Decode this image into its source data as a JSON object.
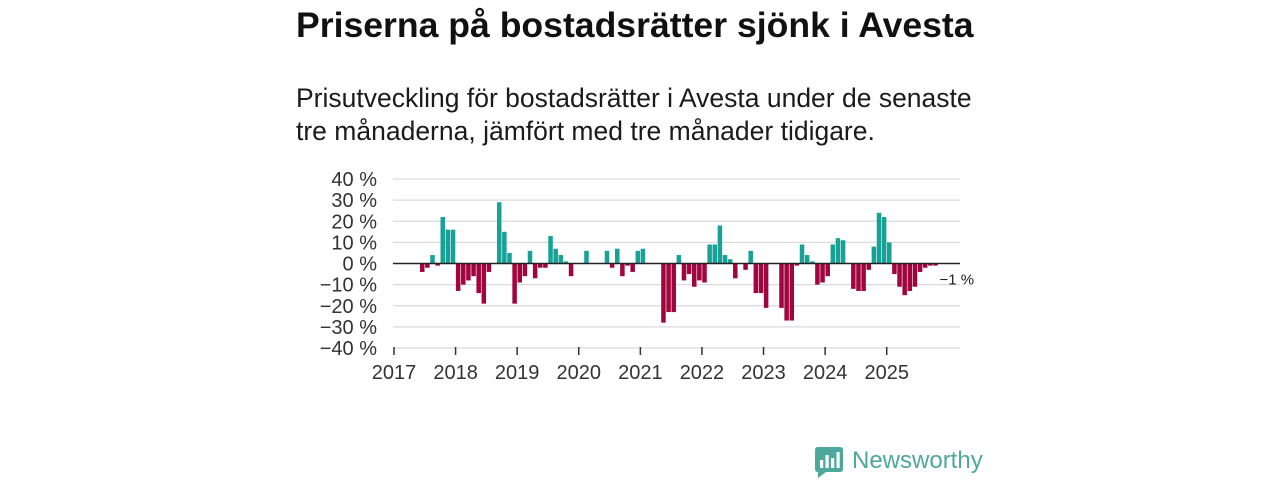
{
  "chart_data": {
    "type": "bar",
    "title": "Priserna på bostadsrätter sjönk i Avesta",
    "subtitle_lines": [
      "Prisutveckling för bostadsrätter i Avesta under de senaste",
      "tre månaderna, jämfört med tre månader tidigare."
    ],
    "xlabel": "",
    "ylabel": "",
    "x_start": 2017.416667,
    "x_step": 0.083333,
    "values": [
      -4,
      -2,
      4,
      -1,
      22,
      16,
      16,
      -13,
      -10,
      -8,
      -6,
      -14,
      -19,
      -4,
      0,
      29,
      15,
      5,
      -19,
      -9,
      -6,
      6,
      -7,
      -2,
      -2,
      13,
      7,
      4,
      1,
      -6,
      0,
      0,
      6,
      0,
      0,
      0,
      6,
      -2,
      7,
      -6,
      -1,
      -4,
      6,
      7,
      0,
      0,
      0,
      -28,
      -23,
      -23,
      4,
      -8,
      -5,
      -11,
      -8,
      -9,
      9,
      9,
      18,
      4,
      2,
      -7,
      0,
      -3,
      6,
      -14,
      -14,
      -21,
      0,
      0,
      -21,
      -27,
      -27,
      -1,
      9,
      4,
      1,
      -10,
      -9,
      -6,
      9,
      12,
      11,
      0,
      -12,
      -13,
      -13,
      -3,
      8,
      24,
      22,
      10,
      -5,
      -11,
      -15,
      -13,
      -11,
      -4,
      -2,
      -1,
      -1
    ],
    "xlim": [
      2017,
      2026.19
    ],
    "ylim": [
      -40,
      40
    ],
    "xticks": [
      2017,
      2018,
      2019,
      2020,
      2021,
      2022,
      2023,
      2024,
      2025
    ],
    "xtick_labels": [
      "2017",
      "2018",
      "2019",
      "2020",
      "2021",
      "2022",
      "2023",
      "2024",
      "2025"
    ],
    "yticks": [
      40,
      30,
      20,
      10,
      0,
      -10,
      -20,
      -30,
      -40
    ],
    "ytick_labels": [
      "40 %",
      "30 %",
      "20 %",
      "10 %",
      "0 %",
      "−10 %",
      "−20 %",
      "−30 %",
      "−40 %"
    ],
    "grid": true,
    "annotation": {
      "text": "−1 %",
      "value": -1
    }
  },
  "colors": {
    "positive_bar": "#17a197",
    "negative_bar": "#a1053e",
    "zero_line": "#222222",
    "gridline": "#dadada",
    "tick": "#333333",
    "brand": "#4ea89c"
  },
  "logo": {
    "text": "Newsworthy",
    "icon": "newsworthy-chart-bubble-icon"
  }
}
